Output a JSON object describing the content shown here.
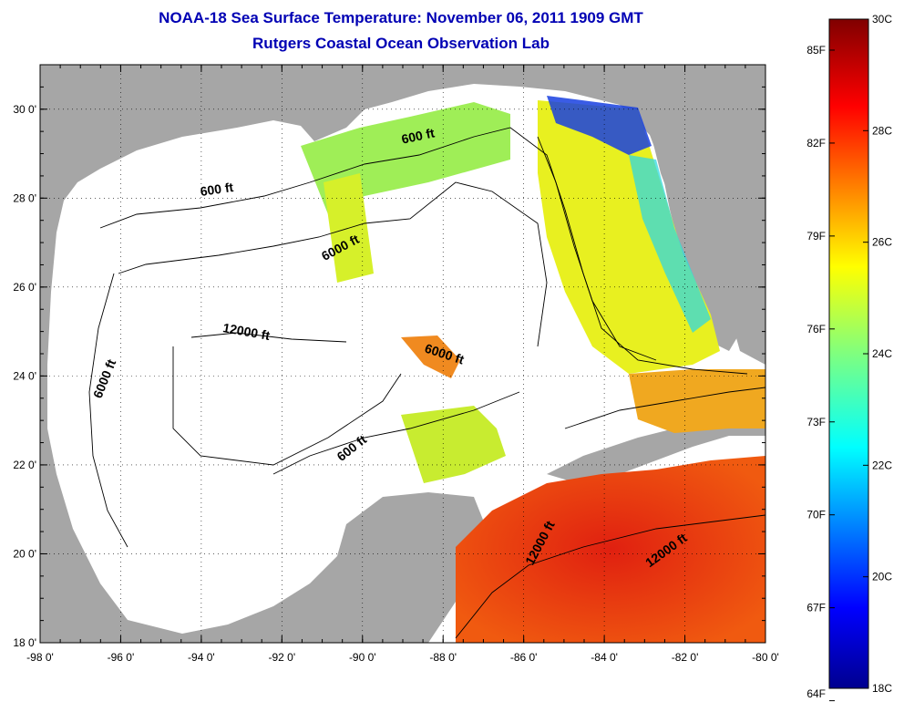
{
  "title": {
    "line1": "NOAA-18 Sea Surface Temperature:  November 06, 2011 1909 GMT",
    "line2": "Rutgers Coastal Ocean Observation Lab"
  },
  "map": {
    "lon_range": [
      -98,
      -80
    ],
    "lat_range": [
      18,
      31
    ],
    "x_ticks": [
      {
        "value": -98,
        "label": "-98 0'"
      },
      {
        "value": -96,
        "label": "-96 0'"
      },
      {
        "value": -94,
        "label": "-94 0'"
      },
      {
        "value": -92,
        "label": "-92 0'"
      },
      {
        "value": -90,
        "label": "-90 0'"
      },
      {
        "value": -88,
        "label": "-88 0'"
      },
      {
        "value": -86,
        "label": "-86 0'"
      },
      {
        "value": -84,
        "label": "-84 0'"
      },
      {
        "value": -82,
        "label": "-82 0'"
      },
      {
        "value": -80,
        "label": "-80 0'"
      }
    ],
    "y_ticks": [
      {
        "value": 18,
        "label": "18 0'"
      },
      {
        "value": 20,
        "label": "20 0'"
      },
      {
        "value": 22,
        "label": "22 0'"
      },
      {
        "value": 24,
        "label": "24 0'"
      },
      {
        "value": 26,
        "label": "26 0'"
      },
      {
        "value": 28,
        "label": "28 0'"
      },
      {
        "value": 30,
        "label": "30 0'"
      }
    ],
    "contour_labels": [
      {
        "text": "600 ft",
        "lon": -93.6,
        "lat": 28.1,
        "rotate": -8
      },
      {
        "text": "600 ft",
        "lon": -88.6,
        "lat": 29.3,
        "rotate": -12
      },
      {
        "text": "6000 ft",
        "lon": -90.5,
        "lat": 26.8,
        "rotate": -28
      },
      {
        "text": "6000 ft",
        "lon": -96.3,
        "lat": 23.9,
        "rotate": -68
      },
      {
        "text": "12000 ft",
        "lon": -92.9,
        "lat": 24.9,
        "rotate": 10
      },
      {
        "text": "6000 ft",
        "lon": -88.0,
        "lat": 24.4,
        "rotate": 18
      },
      {
        "text": "600 ft",
        "lon": -90.2,
        "lat": 22.3,
        "rotate": -38
      },
      {
        "text": "12000 ft",
        "lon": -85.5,
        "lat": 20.2,
        "rotate": -62
      },
      {
        "text": "12000 ft",
        "lon": -82.4,
        "lat": 20.0,
        "rotate": -36
      }
    ],
    "colors": {
      "land": "#a6a6a6",
      "water_nodata": "#ffffff",
      "contour": "#000000"
    }
  },
  "colorbar": {
    "min_c": 18,
    "max_c": 30,
    "celsius_ticks": [
      {
        "value": 30,
        "label": "30C"
      },
      {
        "value": 28,
        "label": "28C"
      },
      {
        "value": 26,
        "label": "26C"
      },
      {
        "value": 24,
        "label": "24C"
      },
      {
        "value": 22,
        "label": "22C"
      },
      {
        "value": 20,
        "label": "20C"
      },
      {
        "value": 18,
        "label": "18C"
      }
    ],
    "fahrenheit_ticks": [
      {
        "value": 85,
        "label": "85F"
      },
      {
        "value": 82,
        "label": "82F"
      },
      {
        "value": 79,
        "label": "79F"
      },
      {
        "value": 76,
        "label": "76F"
      },
      {
        "value": 73,
        "label": "73F"
      },
      {
        "value": 70,
        "label": "70F"
      },
      {
        "value": 67,
        "label": "67F"
      },
      {
        "value": 64,
        "label": "64F"
      }
    ]
  }
}
